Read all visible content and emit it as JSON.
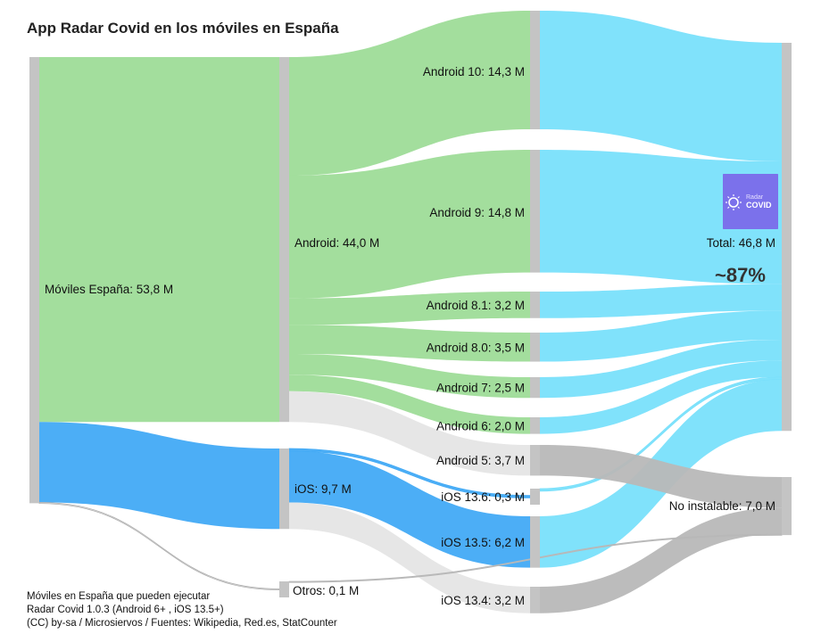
{
  "header": {
    "title": "App Radar Covid en los móviles en España"
  },
  "footer": {
    "line1": "Móviles en España que pueden ejecutar",
    "line2": "Radar Covid 1.0.3 (Android 6+ , iOS 13.5+)",
    "line3": "(CC) by-sa / Microsiervos / Fuentes: Wikipedia, Red.es, StatCounter"
  },
  "annotation": {
    "percent": "~87%"
  },
  "logo": {
    "line1": "Radar",
    "line2": "COVID",
    "icon": "virus-icon"
  },
  "colors": {
    "android": "#9edc98",
    "ios": "#42aaf5",
    "compatible": "#79e0fb",
    "not_compatible": "#b8b8b8",
    "other": "#e6e6e6",
    "node": "#c4c4c4"
  },
  "chart_data": {
    "type": "sankey",
    "units": "M",
    "nodes": [
      {
        "id": "moviles",
        "label": "Móviles España: 53,8 M",
        "value": 53.8,
        "column": 0
      },
      {
        "id": "android",
        "label": "Android: 44,0 M",
        "value": 44.0,
        "column": 1
      },
      {
        "id": "ios",
        "label": "iOS: 9,7 M",
        "value": 9.7,
        "column": 1
      },
      {
        "id": "otros",
        "label": "Otros: 0,1 M",
        "value": 0.1,
        "column": 1
      },
      {
        "id": "a10",
        "label": "Android 10: 14,3 M",
        "value": 14.3,
        "column": 2
      },
      {
        "id": "a9",
        "label": "Android 9: 14,8 M",
        "value": 14.8,
        "column": 2
      },
      {
        "id": "a81",
        "label": "Android 8.1: 3,2 M",
        "value": 3.2,
        "column": 2
      },
      {
        "id": "a80",
        "label": "Android 8.0: 3,5 M",
        "value": 3.5,
        "column": 2
      },
      {
        "id": "a7",
        "label": "Android 7: 2,5 M",
        "value": 2.5,
        "column": 2
      },
      {
        "id": "a6",
        "label": "Android 6: 2,0 M",
        "value": 2.0,
        "column": 2
      },
      {
        "id": "a5",
        "label": "Android 5: 3,7 M",
        "value": 3.7,
        "column": 2
      },
      {
        "id": "ios136",
        "label": "iOS 13.6: 0,3 M",
        "value": 0.3,
        "column": 2
      },
      {
        "id": "ios135",
        "label": "iOS 13.5: 6,2 M",
        "value": 6.2,
        "column": 2
      },
      {
        "id": "ios134",
        "label": "iOS 13.4: 3,2 M",
        "value": 3.2,
        "column": 2
      },
      {
        "id": "total",
        "label": "Total: 46,8 M",
        "value": 46.8,
        "column": 3
      },
      {
        "id": "noinst",
        "label": "No instalable: 7,0 M",
        "value": 7.0,
        "column": 3
      }
    ],
    "links": [
      {
        "source": "moviles",
        "target": "android",
        "value": 44.0,
        "color": "android"
      },
      {
        "source": "moviles",
        "target": "ios",
        "value": 9.7,
        "color": "ios"
      },
      {
        "source": "moviles",
        "target": "otros",
        "value": 0.1,
        "color": "other"
      },
      {
        "source": "android",
        "target": "a10",
        "value": 14.3,
        "color": "android"
      },
      {
        "source": "android",
        "target": "a9",
        "value": 14.8,
        "color": "android"
      },
      {
        "source": "android",
        "target": "a81",
        "value": 3.2,
        "color": "android"
      },
      {
        "source": "android",
        "target": "a80",
        "value": 3.5,
        "color": "android"
      },
      {
        "source": "android",
        "target": "a7",
        "value": 2.5,
        "color": "android"
      },
      {
        "source": "android",
        "target": "a6",
        "value": 2.0,
        "color": "android"
      },
      {
        "source": "android",
        "target": "a5",
        "value": 3.7,
        "color": "other"
      },
      {
        "source": "ios",
        "target": "ios136",
        "value": 0.3,
        "color": "ios"
      },
      {
        "source": "ios",
        "target": "ios135",
        "value": 6.2,
        "color": "ios"
      },
      {
        "source": "ios",
        "target": "ios134",
        "value": 3.2,
        "color": "other"
      },
      {
        "source": "a10",
        "target": "total",
        "value": 14.3,
        "color": "compatible"
      },
      {
        "source": "a9",
        "target": "total",
        "value": 14.8,
        "color": "compatible"
      },
      {
        "source": "a81",
        "target": "total",
        "value": 3.2,
        "color": "compatible"
      },
      {
        "source": "a80",
        "target": "total",
        "value": 3.5,
        "color": "compatible"
      },
      {
        "source": "a7",
        "target": "total",
        "value": 2.5,
        "color": "compatible"
      },
      {
        "source": "a6",
        "target": "total",
        "value": 2.0,
        "color": "compatible"
      },
      {
        "source": "ios136",
        "target": "total",
        "value": 0.3,
        "color": "compatible"
      },
      {
        "source": "ios135",
        "target": "total",
        "value": 6.2,
        "color": "compatible"
      },
      {
        "source": "a5",
        "target": "noinst",
        "value": 3.7,
        "color": "not_compatible"
      },
      {
        "source": "ios134",
        "target": "noinst",
        "value": 3.2,
        "color": "not_compatible"
      },
      {
        "source": "otros",
        "target": "noinst",
        "value": 0.1,
        "color": "not_compatible"
      }
    ]
  }
}
